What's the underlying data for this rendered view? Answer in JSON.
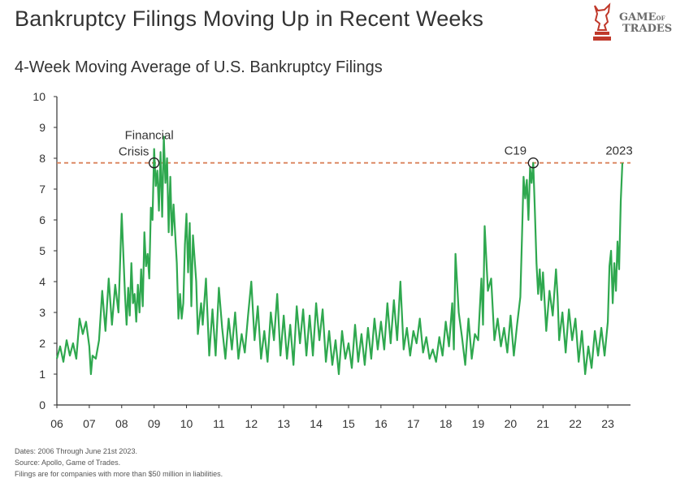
{
  "header": {
    "title": "Bankruptcy Filings Moving Up in Recent Weeks",
    "subtitle": "4-Week Moving Average of U.S. Bankruptcy Filings"
  },
  "logo": {
    "line1_main": "GAME",
    "line1_small": "OF",
    "line2": "TRADES",
    "icon": "bull-chess-knight-icon",
    "color": "#c0392b"
  },
  "notes": {
    "dates": "Dates: 2006 Through June 21st 2023.",
    "source": "Source: Apollo, Game of Trades.",
    "filings": "Filings are for companies with more than $50 million in liabilities."
  },
  "colors": {
    "line": "#2fa84f",
    "reference": "#d9825b",
    "axis": "#333333"
  },
  "chart_data": {
    "type": "line",
    "title": "4-Week Moving Average of U.S. Bankruptcy Filings",
    "xlabel": "",
    "ylabel": "",
    "xlim": [
      2006,
      2023.7
    ],
    "ylim": [
      0,
      10
    ],
    "x_ticks": [
      "06",
      "07",
      "08",
      "09",
      "10",
      "11",
      "12",
      "13",
      "14",
      "15",
      "16",
      "17",
      "18",
      "19",
      "20",
      "21",
      "22",
      "23"
    ],
    "y_ticks": [
      0,
      1,
      2,
      3,
      4,
      5,
      6,
      7,
      8,
      9,
      10
    ],
    "grid": false,
    "reference_line": {
      "y": 7.85,
      "style": "dashed"
    },
    "annotations": [
      {
        "label_line1": "Financial",
        "label_line2": "Crisis",
        "x": 2009.0,
        "y": 7.85
      },
      {
        "label": "C19",
        "x": 2020.7,
        "y": 7.85
      },
      {
        "label": "2023",
        "x": 2023.45,
        "y": 7.85
      }
    ],
    "series": [
      {
        "name": "",
        "points": [
          [
            2006.0,
            1.5
          ],
          [
            2006.1,
            1.9
          ],
          [
            2006.2,
            1.4
          ],
          [
            2006.3,
            2.1
          ],
          [
            2006.4,
            1.6
          ],
          [
            2006.5,
            2.0
          ],
          [
            2006.6,
            1.5
          ],
          [
            2006.7,
            2.8
          ],
          [
            2006.8,
            2.3
          ],
          [
            2006.9,
            2.7
          ],
          [
            2007.0,
            1.9
          ],
          [
            2007.05,
            1.0
          ],
          [
            2007.1,
            1.6
          ],
          [
            2007.2,
            1.5
          ],
          [
            2007.3,
            2.1
          ],
          [
            2007.4,
            3.7
          ],
          [
            2007.5,
            2.4
          ],
          [
            2007.6,
            4.1
          ],
          [
            2007.7,
            2.6
          ],
          [
            2007.8,
            3.9
          ],
          [
            2007.9,
            3.0
          ],
          [
            2008.0,
            6.2
          ],
          [
            2008.1,
            3.6
          ],
          [
            2008.15,
            2.6
          ],
          [
            2008.2,
            3.8
          ],
          [
            2008.25,
            2.9
          ],
          [
            2008.3,
            4.6
          ],
          [
            2008.35,
            3.3
          ],
          [
            2008.4,
            3.6
          ],
          [
            2008.45,
            2.7
          ],
          [
            2008.5,
            3.9
          ],
          [
            2008.55,
            3.0
          ],
          [
            2008.6,
            4.4
          ],
          [
            2008.65,
            3.2
          ],
          [
            2008.7,
            5.6
          ],
          [
            2008.75,
            4.5
          ],
          [
            2008.8,
            4.9
          ],
          [
            2008.85,
            4.1
          ],
          [
            2008.9,
            6.4
          ],
          [
            2008.95,
            6.0
          ],
          [
            2009.0,
            8.3
          ],
          [
            2009.05,
            7.1
          ],
          [
            2009.1,
            7.6
          ],
          [
            2009.15,
            6.3
          ],
          [
            2009.2,
            8.2
          ],
          [
            2009.25,
            6.1
          ],
          [
            2009.3,
            8.7
          ],
          [
            2009.35,
            7.2
          ],
          [
            2009.4,
            8.0
          ],
          [
            2009.45,
            5.6
          ],
          [
            2009.5,
            7.4
          ],
          [
            2009.55,
            5.5
          ],
          [
            2009.6,
            6.5
          ],
          [
            2009.7,
            4.6
          ],
          [
            2009.75,
            2.8
          ],
          [
            2009.8,
            3.6
          ],
          [
            2009.85,
            2.8
          ],
          [
            2009.9,
            3.3
          ],
          [
            2009.95,
            5.2
          ],
          [
            2010.0,
            6.2
          ],
          [
            2010.05,
            4.3
          ],
          [
            2010.1,
            5.9
          ],
          [
            2010.15,
            3.2
          ],
          [
            2010.2,
            5.5
          ],
          [
            2010.3,
            4.0
          ],
          [
            2010.35,
            2.3
          ],
          [
            2010.45,
            3.3
          ],
          [
            2010.5,
            2.6
          ],
          [
            2010.6,
            4.1
          ],
          [
            2010.7,
            1.6
          ],
          [
            2010.8,
            3.1
          ],
          [
            2010.9,
            1.6
          ],
          [
            2011.0,
            3.8
          ],
          [
            2011.1,
            2.5
          ],
          [
            2011.2,
            1.5
          ],
          [
            2011.3,
            2.8
          ],
          [
            2011.4,
            1.8
          ],
          [
            2011.5,
            3.0
          ],
          [
            2011.6,
            1.5
          ],
          [
            2011.7,
            2.3
          ],
          [
            2011.8,
            1.7
          ],
          [
            2011.9,
            2.9
          ],
          [
            2012.0,
            4.0
          ],
          [
            2012.1,
            2.1
          ],
          [
            2012.2,
            3.2
          ],
          [
            2012.3,
            1.5
          ],
          [
            2012.4,
            2.4
          ],
          [
            2012.5,
            1.4
          ],
          [
            2012.6,
            3.0
          ],
          [
            2012.7,
            2.1
          ],
          [
            2012.8,
            3.6
          ],
          [
            2012.9,
            1.6
          ],
          [
            2013.0,
            2.9
          ],
          [
            2013.1,
            1.5
          ],
          [
            2013.2,
            2.6
          ],
          [
            2013.3,
            1.3
          ],
          [
            2013.4,
            3.2
          ],
          [
            2013.5,
            2.0
          ],
          [
            2013.6,
            3.1
          ],
          [
            2013.7,
            1.6
          ],
          [
            2013.8,
            2.9
          ],
          [
            2013.9,
            1.6
          ],
          [
            2014.0,
            3.3
          ],
          [
            2014.1,
            2.1
          ],
          [
            2014.2,
            3.1
          ],
          [
            2014.3,
            1.4
          ],
          [
            2014.4,
            2.4
          ],
          [
            2014.5,
            1.3
          ],
          [
            2014.6,
            2.1
          ],
          [
            2014.7,
            1.0
          ],
          [
            2014.8,
            2.4
          ],
          [
            2014.9,
            1.5
          ],
          [
            2015.0,
            2.0
          ],
          [
            2015.1,
            1.2
          ],
          [
            2015.2,
            2.6
          ],
          [
            2015.3,
            1.4
          ],
          [
            2015.4,
            2.3
          ],
          [
            2015.5,
            1.3
          ],
          [
            2015.6,
            2.5
          ],
          [
            2015.7,
            1.5
          ],
          [
            2015.8,
            2.8
          ],
          [
            2015.9,
            1.8
          ],
          [
            2016.0,
            2.7
          ],
          [
            2016.1,
            1.8
          ],
          [
            2016.2,
            3.3
          ],
          [
            2016.3,
            2.0
          ],
          [
            2016.4,
            3.4
          ],
          [
            2016.5,
            2.1
          ],
          [
            2016.6,
            4.0
          ],
          [
            2016.7,
            1.8
          ],
          [
            2016.8,
            2.5
          ],
          [
            2016.9,
            1.6
          ],
          [
            2017.0,
            2.4
          ],
          [
            2017.1,
            2.0
          ],
          [
            2017.2,
            2.8
          ],
          [
            2017.3,
            1.7
          ],
          [
            2017.4,
            2.2
          ],
          [
            2017.5,
            1.5
          ],
          [
            2017.6,
            1.8
          ],
          [
            2017.7,
            1.4
          ],
          [
            2017.8,
            2.2
          ],
          [
            2017.9,
            1.6
          ],
          [
            2018.0,
            2.7
          ],
          [
            2018.1,
            1.9
          ],
          [
            2018.2,
            3.3
          ],
          [
            2018.25,
            1.8
          ],
          [
            2018.3,
            4.9
          ],
          [
            2018.4,
            3.0
          ],
          [
            2018.5,
            2.2
          ],
          [
            2018.6,
            1.3
          ],
          [
            2018.7,
            2.8
          ],
          [
            2018.8,
            1.5
          ],
          [
            2018.9,
            2.3
          ],
          [
            2019.0,
            2.1
          ],
          [
            2019.1,
            4.1
          ],
          [
            2019.15,
            2.6
          ],
          [
            2019.2,
            5.8
          ],
          [
            2019.3,
            3.7
          ],
          [
            2019.4,
            4.1
          ],
          [
            2019.5,
            2.1
          ],
          [
            2019.6,
            2.8
          ],
          [
            2019.7,
            1.9
          ],
          [
            2019.8,
            2.5
          ],
          [
            2019.9,
            1.7
          ],
          [
            2020.0,
            2.9
          ],
          [
            2020.1,
            1.6
          ],
          [
            2020.2,
            2.6
          ],
          [
            2020.3,
            3.5
          ],
          [
            2020.35,
            5.4
          ],
          [
            2020.4,
            7.4
          ],
          [
            2020.45,
            6.7
          ],
          [
            2020.5,
            7.3
          ],
          [
            2020.55,
            6.0
          ],
          [
            2020.6,
            7.7
          ],
          [
            2020.65,
            7.2
          ],
          [
            2020.7,
            7.85
          ],
          [
            2020.75,
            6.3
          ],
          [
            2020.8,
            4.6
          ],
          [
            2020.85,
            3.6
          ],
          [
            2020.9,
            4.4
          ],
          [
            2020.95,
            3.4
          ],
          [
            2021.0,
            4.3
          ],
          [
            2021.1,
            2.4
          ],
          [
            2021.2,
            3.7
          ],
          [
            2021.3,
            2.9
          ],
          [
            2021.4,
            4.4
          ],
          [
            2021.45,
            3.5
          ],
          [
            2021.5,
            2.1
          ],
          [
            2021.6,
            3.0
          ],
          [
            2021.7,
            1.7
          ],
          [
            2021.8,
            3.1
          ],
          [
            2021.9,
            2.1
          ],
          [
            2022.0,
            2.8
          ],
          [
            2022.1,
            1.4
          ],
          [
            2022.2,
            2.4
          ],
          [
            2022.3,
            1.0
          ],
          [
            2022.4,
            1.9
          ],
          [
            2022.5,
            1.2
          ],
          [
            2022.6,
            2.4
          ],
          [
            2022.7,
            1.6
          ],
          [
            2022.8,
            2.5
          ],
          [
            2022.9,
            1.6
          ],
          [
            2023.0,
            2.7
          ],
          [
            2023.05,
            4.5
          ],
          [
            2023.1,
            5.0
          ],
          [
            2023.15,
            3.3
          ],
          [
            2023.2,
            4.6
          ],
          [
            2023.25,
            3.7
          ],
          [
            2023.3,
            5.3
          ],
          [
            2023.35,
            4.4
          ],
          [
            2023.4,
            6.6
          ],
          [
            2023.45,
            7.85
          ]
        ]
      }
    ]
  }
}
